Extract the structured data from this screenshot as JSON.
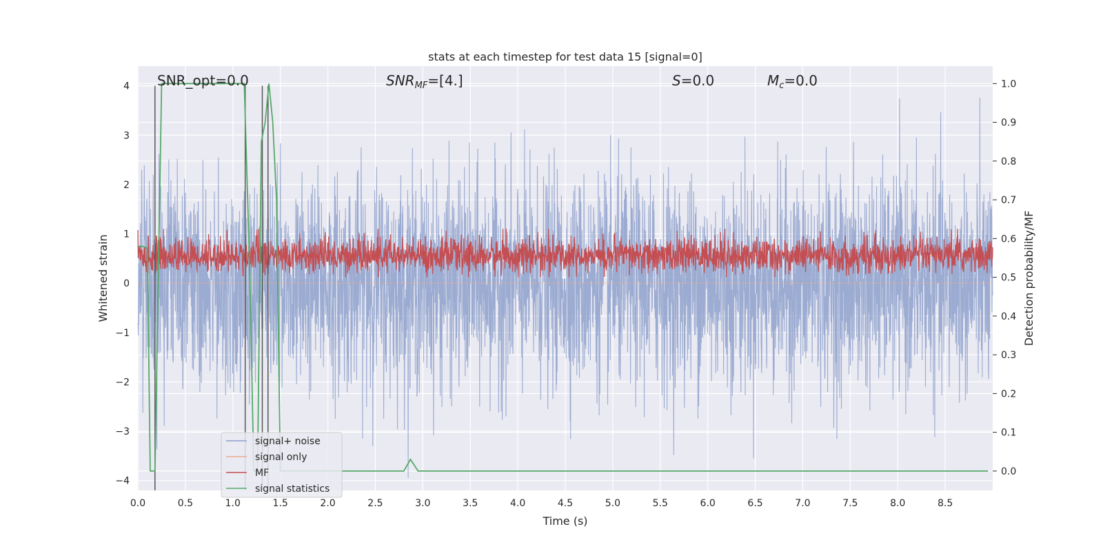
{
  "chart_data": {
    "type": "line",
    "title": "stats at each timestep for test data 15 [signal=0]",
    "xlabel": "Time (s)",
    "ylabel": "Whitened strain",
    "ylabel_right": "Detection probability/MF",
    "xlim": [
      0,
      9.0
    ],
    "ylim": [
      -4.2,
      4.4
    ],
    "ylim_right": [
      -0.05,
      1.045
    ],
    "x_ticks": [
      "0.0",
      "0.5",
      "1.0",
      "1.5",
      "2.0",
      "2.5",
      "3.0",
      "3.5",
      "4.0",
      "4.5",
      "5.0",
      "5.5",
      "6.0",
      "6.5",
      "7.0",
      "7.5",
      "8.0",
      "8.5"
    ],
    "y_ticks": [
      "-4",
      "-3",
      "-2",
      "-1",
      "0",
      "1",
      "2",
      "3",
      "4"
    ],
    "y_ticks_right": [
      "0.0",
      "0.1",
      "0.2",
      "0.3",
      "0.4",
      "0.5",
      "0.6",
      "0.7",
      "0.8",
      "0.9",
      "1.0"
    ],
    "grid": true,
    "legend_position": "lower-left",
    "annotations": {
      "snr_opt": "SNR_opt=0.0",
      "snr_mf_base": "SNR",
      "snr_mf_sub": "MF",
      "snr_mf_value": "=[4.]",
      "s_var": "S",
      "s_value": "=0.0",
      "mc_var": "M",
      "mc_sub": "c",
      "mc_value": "=0.0"
    },
    "series": [
      {
        "name": "signal+ noise",
        "color": "#8da0cb",
        "axis": "left",
        "note": "whitened noise, approx. N(0,1), spans about -3.9 to 4.0"
      },
      {
        "name": "signal only",
        "color": "#e9a98c",
        "axis": "left",
        "note": "zero (signal=0)"
      },
      {
        "name": "MF",
        "color": "#c44e52",
        "axis": "right",
        "note": "fluctuates between approx 0.50 and 0.62"
      },
      {
        "name": "signal statistics",
        "color": "#55a868",
        "axis": "right",
        "x": [
          0.0,
          0.05,
          0.1,
          0.13,
          0.18,
          0.25,
          0.5,
          1.0,
          1.12,
          1.18,
          1.22,
          1.26,
          1.3,
          1.34,
          1.38,
          1.42,
          1.46,
          1.5,
          1.55,
          2.0,
          2.2,
          2.5,
          2.8,
          2.87,
          2.95,
          3.5,
          4.0,
          5.0,
          6.0,
          7.0,
          8.0,
          8.95
        ],
        "y": [
          0.58,
          0.58,
          0.575,
          0.0,
          0.0,
          1.0,
          1.0,
          1.0,
          1.0,
          0.5,
          0.0,
          0.0,
          0.85,
          0.9,
          1.0,
          0.9,
          0.7,
          0.0,
          0.0,
          0.0,
          0.0,
          0.0,
          0.0,
          0.03,
          0.0,
          0.0,
          0.0,
          0.0,
          0.0,
          0.0,
          0.0,
          0.0
        ]
      }
    ],
    "vlines_x": [
      0.18,
      1.13,
      1.31,
      1.37
    ],
    "vlines_range_y": [
      -4.2,
      4.0
    ]
  }
}
